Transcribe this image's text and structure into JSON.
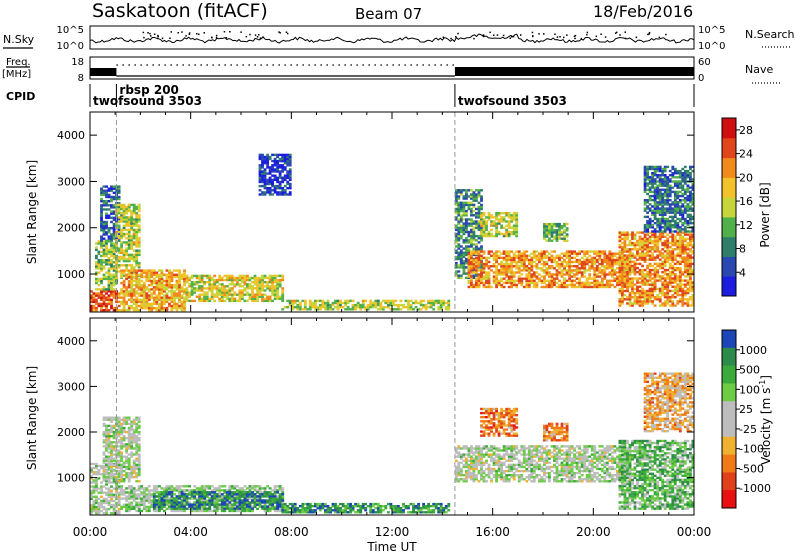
{
  "header": {
    "station": "Saskatoon (fitACF)",
    "beam": "Beam 07",
    "date": "18/Feb/2016"
  },
  "summary_panels": {
    "nsky_label": "N.Sky",
    "nsky_ticks": [
      "10^5",
      "10^0"
    ],
    "nsearch_label": "N.Search",
    "nsearch_ticks": [
      "10^5",
      "10^0"
    ],
    "freq_label": "Freq.",
    "freq_unit": "[MHz]",
    "freq_ticks": [
      "18",
      "8"
    ],
    "nave_label": "Nave",
    "nave_ticks": [
      "60",
      "0"
    ],
    "cpid_label": "CPID",
    "cpid_segments": [
      {
        "name": "twofsound 3503",
        "start_hour": 0.0,
        "end_hour": 1.05
      },
      {
        "name": "rbsp 200",
        "start_hour": 1.05,
        "end_hour": 14.5
      },
      {
        "name": "twofsound 3503",
        "start_hour": 14.5,
        "end_hour": 24.0
      }
    ]
  },
  "chart_data": [
    {
      "type": "heatmap",
      "title": "",
      "xlabel": "Time UT",
      "ylabel": "Slant Range [km]",
      "xlim": [
        0,
        24
      ],
      "ylim": [
        180,
        4500
      ],
      "xticks": [
        "00:00",
        "04:00",
        "08:00",
        "12:00",
        "16:00",
        "20:00",
        "00:00"
      ],
      "yticks": [
        1000,
        2000,
        3000,
        4000
      ],
      "colorbar": {
        "label": "Power [dB]",
        "ticks": [
          4,
          8,
          12,
          16,
          20,
          24,
          28
        ],
        "range": [
          0,
          30
        ],
        "colors": [
          "#1d1de0",
          "#2a48b0",
          "#2e7e6a",
          "#52b04a",
          "#c6d63a",
          "#f2c22a",
          "#f08a1c",
          "#e0451c",
          "#d01010"
        ]
      },
      "cpid_change_hours": [
        1.05,
        14.5
      ],
      "echo_regions": [
        {
          "t0": 0.0,
          "t1": 1.2,
          "r0": 200,
          "r1": 650,
          "level": 0.8
        },
        {
          "t0": 0.2,
          "t1": 1.0,
          "r0": 650,
          "r1": 1700,
          "level": 0.45
        },
        {
          "t0": 0.4,
          "t1": 1.2,
          "r0": 1700,
          "r1": 2900,
          "level": 0.2
        },
        {
          "t0": 1.0,
          "t1": 2.0,
          "r0": 900,
          "r1": 2500,
          "level": 0.5
        },
        {
          "t0": 1.2,
          "t1": 3.8,
          "r0": 200,
          "r1": 1100,
          "level": 0.65
        },
        {
          "t0": 3.8,
          "t1": 7.6,
          "r0": 400,
          "r1": 950,
          "level": 0.55
        },
        {
          "t0": 7.6,
          "t1": 14.2,
          "r0": 220,
          "r1": 420,
          "level": 0.5
        },
        {
          "t0": 6.7,
          "t1": 7.9,
          "r0": 2700,
          "r1": 3600,
          "level": 0.1
        },
        {
          "t0": 14.5,
          "t1": 15.5,
          "r0": 900,
          "r1": 2800,
          "level": 0.3
        },
        {
          "t0": 15.0,
          "t1": 21.5,
          "r0": 700,
          "r1": 1500,
          "level": 0.7
        },
        {
          "t0": 15.5,
          "t1": 17.0,
          "r0": 1800,
          "r1": 2300,
          "level": 0.5
        },
        {
          "t0": 18.0,
          "t1": 19.0,
          "r0": 1700,
          "r1": 2100,
          "level": 0.4
        },
        {
          "t0": 21.0,
          "t1": 24.0,
          "r0": 300,
          "r1": 1900,
          "level": 0.7
        },
        {
          "t0": 22.0,
          "t1": 24.0,
          "r0": 1900,
          "r1": 3300,
          "level": 0.25
        }
      ]
    },
    {
      "type": "heatmap",
      "title": "",
      "xlabel": "Time UT",
      "ylabel": "Slant Range [km]",
      "xlim": [
        0,
        24
      ],
      "ylim": [
        180,
        4500
      ],
      "xticks": [
        "00:00",
        "04:00",
        "08:00",
        "12:00",
        "16:00",
        "20:00",
        "00:00"
      ],
      "yticks": [
        1000,
        2000,
        3000,
        4000
      ],
      "colorbar": {
        "label": "Velocity [m s^-1]",
        "ticks": [
          1000,
          500,
          100,
          25,
          -25,
          -100,
          -500,
          -1000
        ],
        "colors": [
          "#1c46b8",
          "#2c8a4a",
          "#3aaa3a",
          "#6ccc46",
          "#bdbdbd",
          "#bdbdbd",
          "#f0b030",
          "#f07a18",
          "#e0401a",
          "#e81010"
        ]
      },
      "cpid_change_hours": [
        1.05,
        14.5
      ],
      "echo_regions": [
        {
          "t0": 0.0,
          "t1": 1.2,
          "r0": 200,
          "r1": 1300,
          "level": 0.45
        },
        {
          "t0": 0.5,
          "t1": 2.0,
          "r0": 900,
          "r1": 2300,
          "level": 0.45
        },
        {
          "t0": 1.2,
          "t1": 7.6,
          "r0": 250,
          "r1": 800,
          "level": 0.4
        },
        {
          "t0": 2.5,
          "t1": 7.6,
          "r0": 300,
          "r1": 700,
          "level": 0.15
        },
        {
          "t0": 7.6,
          "t1": 14.2,
          "r0": 220,
          "r1": 420,
          "level": 0.2
        },
        {
          "t0": 14.5,
          "t1": 21.5,
          "r0": 900,
          "r1": 1700,
          "level": 0.45
        },
        {
          "t0": 15.5,
          "t1": 17.0,
          "r0": 1900,
          "r1": 2500,
          "level": 0.75
        },
        {
          "t0": 18.0,
          "t1": 19.0,
          "r0": 1800,
          "r1": 2200,
          "level": 0.72
        },
        {
          "t0": 21.0,
          "t1": 24.0,
          "r0": 300,
          "r1": 1800,
          "level": 0.3
        },
        {
          "t0": 22.0,
          "t1": 24.0,
          "r0": 2000,
          "r1": 3300,
          "level": 0.65
        }
      ]
    }
  ]
}
